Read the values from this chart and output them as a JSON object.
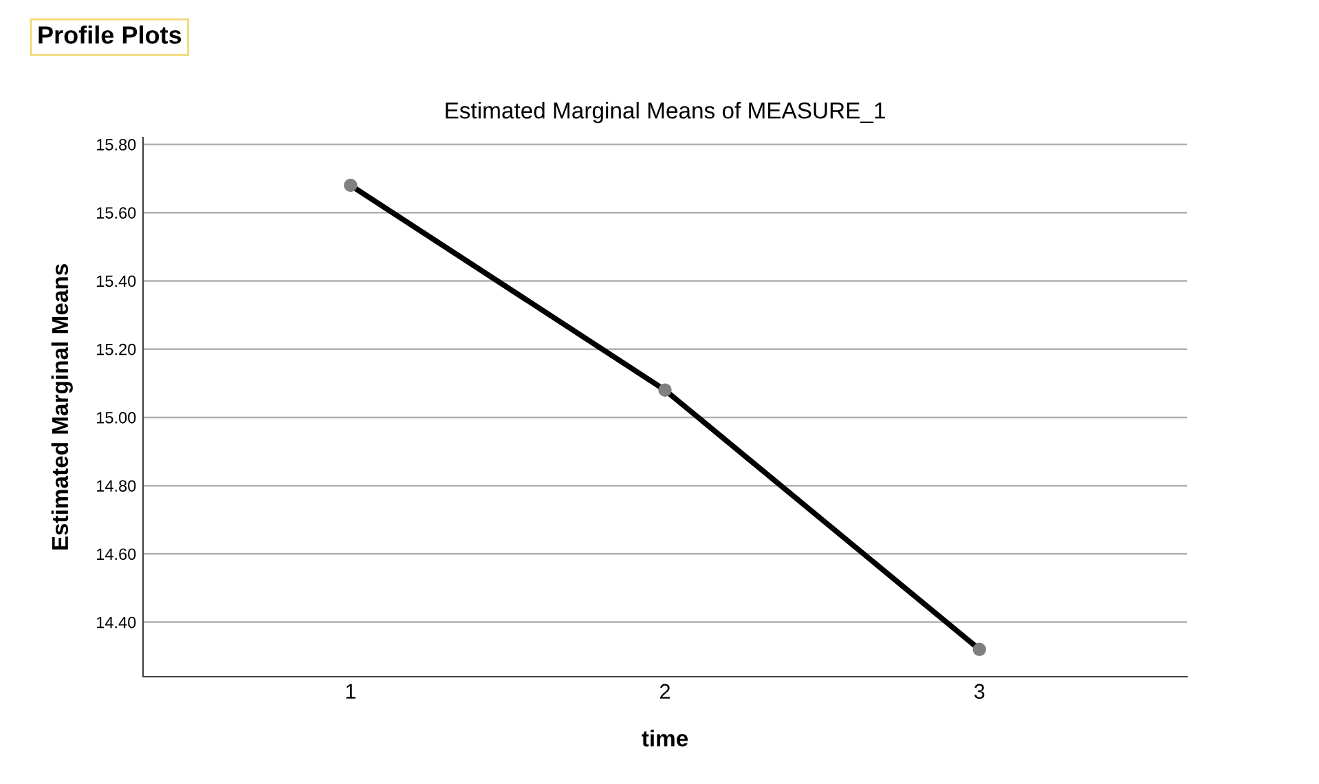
{
  "chart_data": {
    "type": "line",
    "title": "Estimated Marginal Means of MEASURE_1",
    "xlabel": "time",
    "ylabel": "Estimated Marginal Means",
    "annotations": [
      "Profile Plots"
    ],
    "categories": [
      "1",
      "2",
      "3"
    ],
    "series": [
      {
        "color": "#000000",
        "values": [
          15.68,
          15.08,
          14.32
        ]
      }
    ],
    "ylim": [
      14.24,
      15.82
    ],
    "yticks": [
      {
        "value": 14.4,
        "label": "14.40"
      },
      {
        "value": 14.6,
        "label": "14.60"
      },
      {
        "value": 14.8,
        "label": "14.80"
      },
      {
        "value": 15.0,
        "label": "15.00"
      },
      {
        "value": 15.2,
        "label": "15.20"
      },
      {
        "value": 15.4,
        "label": "15.40"
      },
      {
        "value": 15.6,
        "label": "15.60"
      },
      {
        "value": 15.8,
        "label": "15.80"
      }
    ],
    "grid": "y",
    "marker": "circle",
    "line_style": "solid"
  }
}
